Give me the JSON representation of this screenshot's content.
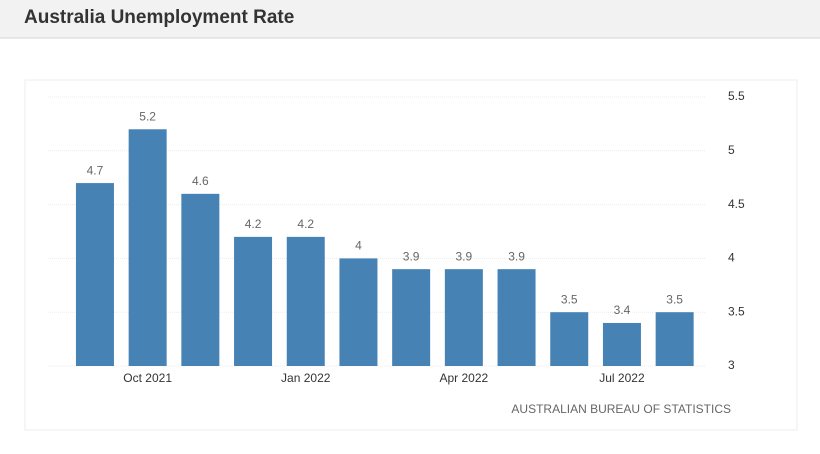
{
  "chart_data": {
    "type": "bar",
    "title": "Australia Unemployment Rate",
    "categories": [
      null,
      "Oct 2021",
      null,
      null,
      "Jan 2022",
      null,
      null,
      "Apr 2022",
      null,
      null,
      "Jul 2022",
      null
    ],
    "values": [
      4.7,
      5.2,
      4.6,
      4.2,
      4.2,
      4,
      3.9,
      3.9,
      3.9,
      3.5,
      3.4,
      3.5
    ],
    "color": "#4682b4",
    "ylim": [
      3,
      5.5
    ],
    "yticks": [
      3,
      3.5,
      4,
      4.5,
      5,
      5.5
    ],
    "grid": true,
    "source": "AUSTRALIAN BUREAU OF STATISTICS"
  }
}
